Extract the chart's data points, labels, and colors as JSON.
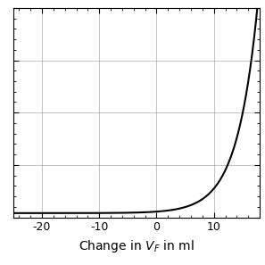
{
  "title": "",
  "xlabel": "Change in $V_F$ in ml",
  "ylabel": "",
  "xlim": [
    -25,
    18
  ],
  "ylim": [
    0,
    1
  ],
  "xticks": [
    -20,
    -10,
    0,
    10
  ],
  "yticks": [
    0.0,
    0.25,
    0.5,
    0.75,
    1.0
  ],
  "curve_color": "#000000",
  "background_color": "#ffffff",
  "grid_color": "#888888",
  "curve_exp_scale": 0.28,
  "curve_x_shift": 8.0,
  "figsize": [
    2.97,
    2.97
  ],
  "dpi": 100
}
